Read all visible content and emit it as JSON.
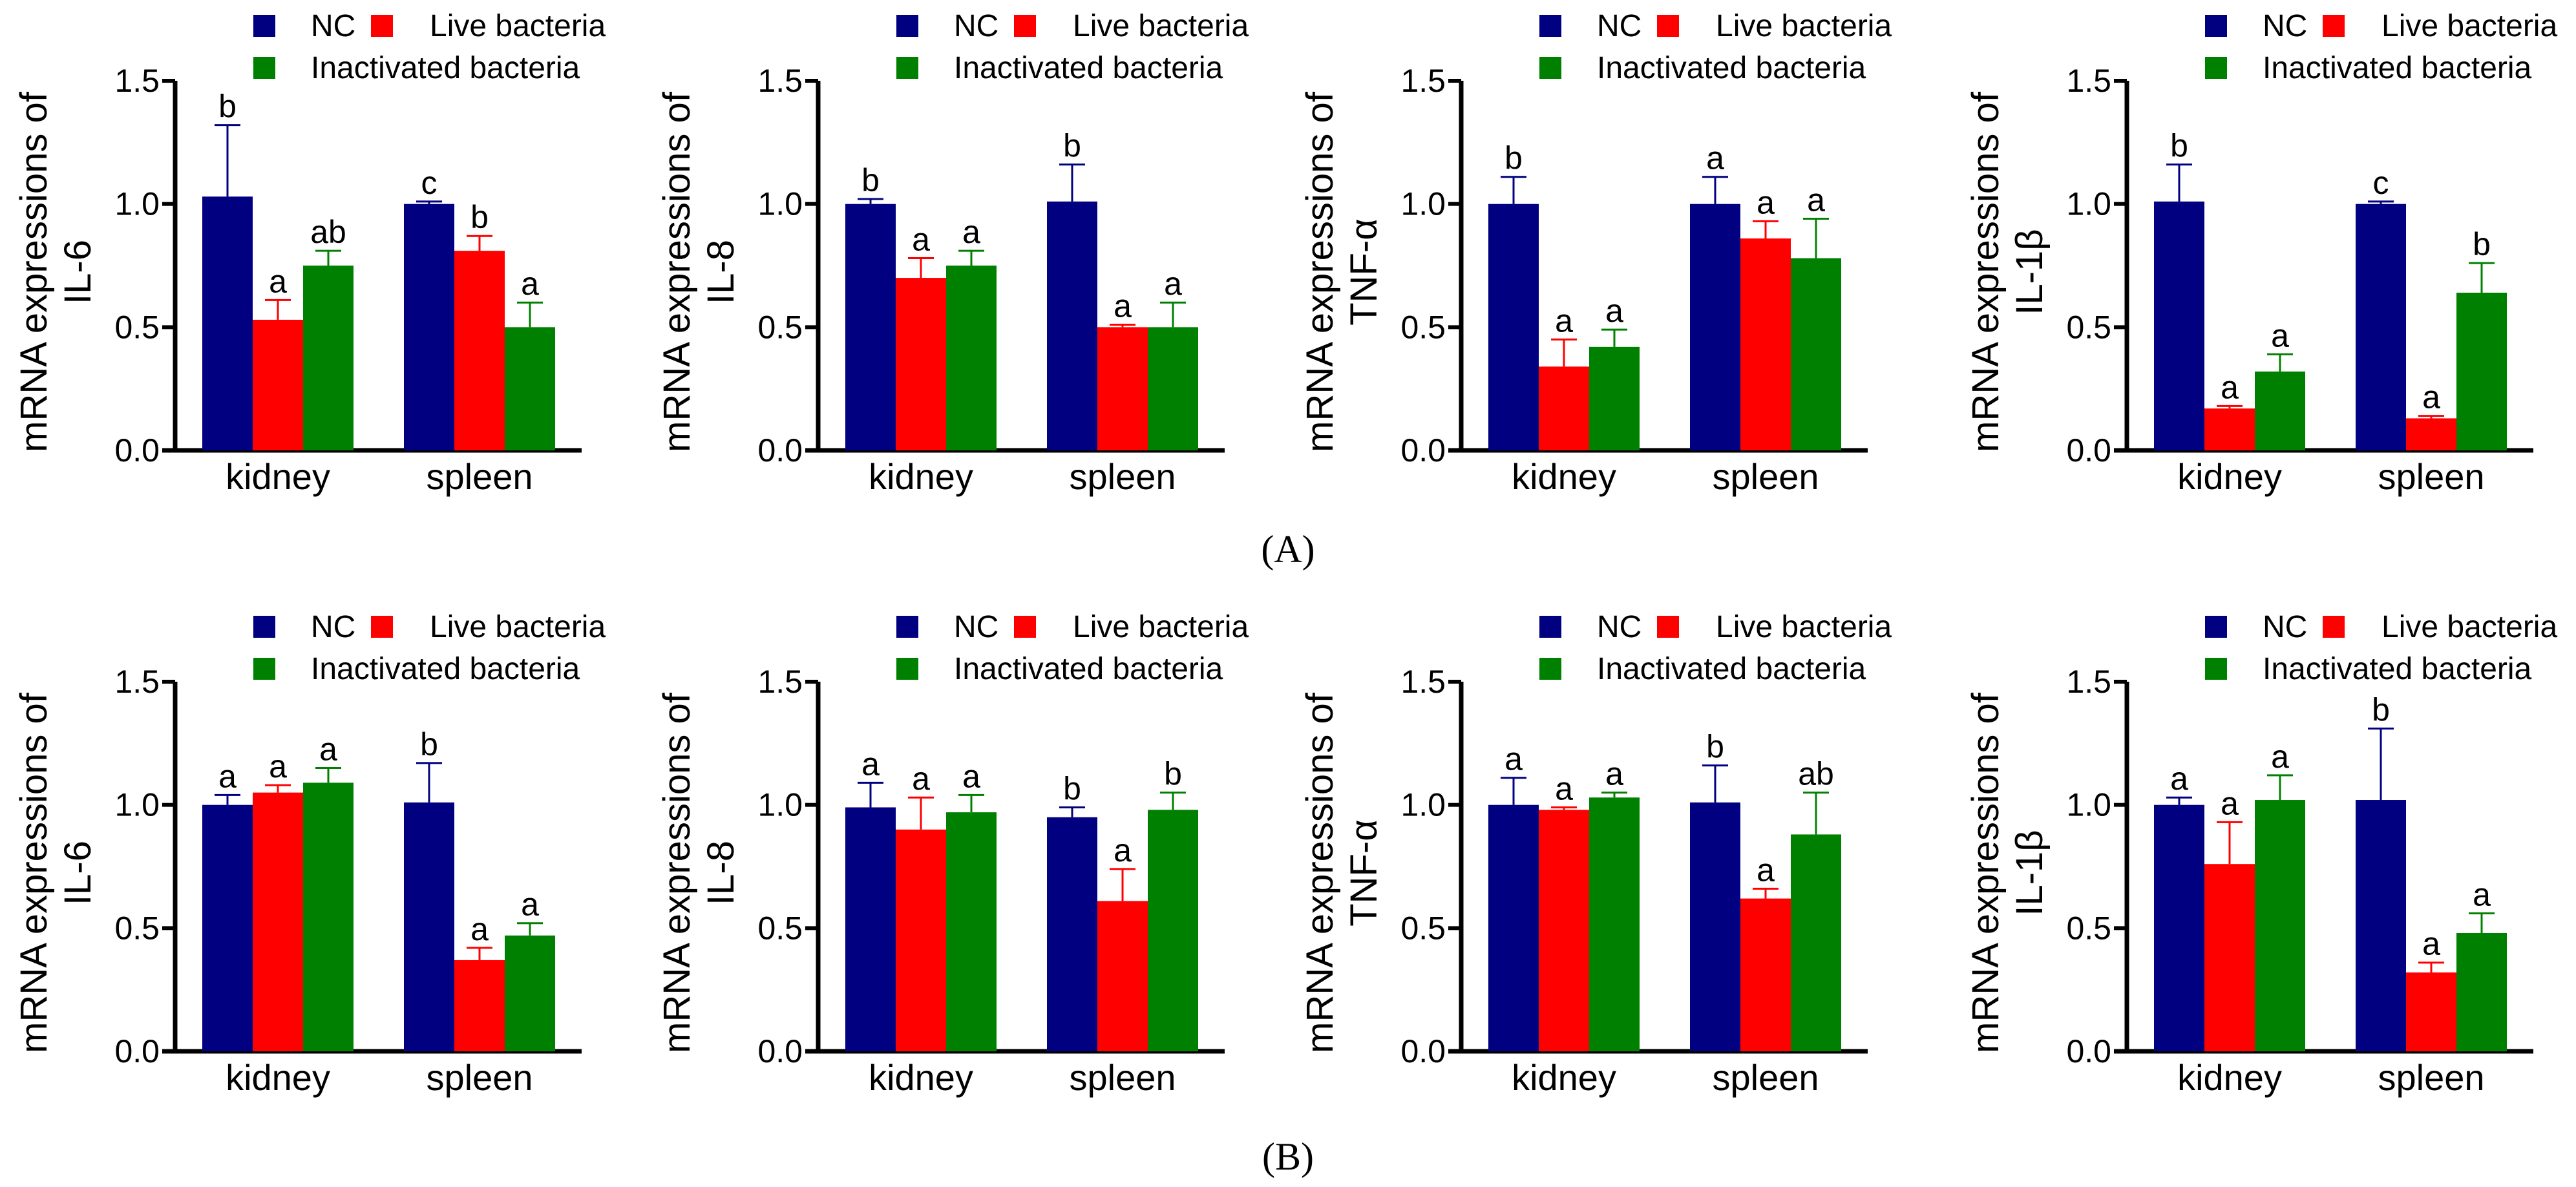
{
  "colors": {
    "NC": "#000080",
    "Live bacteria": "#ff0000",
    "Inactivated bacteria": "#008000"
  },
  "legend": [
    "NC",
    "Live bacteria",
    "Inactivated bacteria"
  ],
  "panel_labels": [
    "(A)",
    "(B)"
  ],
  "chart_data": [
    {
      "type": "bar",
      "row": "A",
      "ylabel": [
        "mRNA expressions of",
        "IL-6"
      ],
      "ylim": [
        0,
        1.5
      ],
      "yticks": [
        "0.0",
        "0.5",
        "1.0",
        "1.5"
      ],
      "categories": [
        "kidney",
        "spleen"
      ],
      "series": [
        {
          "name": "NC",
          "values": [
            1.03,
            1.0
          ],
          "errors": [
            0.29,
            0.01
          ],
          "letters": [
            "b",
            "c"
          ]
        },
        {
          "name": "Live bacteria",
          "values": [
            0.53,
            0.81
          ],
          "errors": [
            0.08,
            0.06
          ],
          "letters": [
            "a",
            "b"
          ]
        },
        {
          "name": "Inactivated bacteria",
          "values": [
            0.75,
            0.5
          ],
          "errors": [
            0.06,
            0.1
          ],
          "letters": [
            "ab",
            "a"
          ]
        }
      ]
    },
    {
      "type": "bar",
      "row": "A",
      "ylabel": [
        "mRNA expressions of",
        "IL-8"
      ],
      "ylim": [
        0,
        1.5
      ],
      "yticks": [
        "0.0",
        "0.5",
        "1.0",
        "1.5"
      ],
      "categories": [
        "kidney",
        "spleen"
      ],
      "series": [
        {
          "name": "NC",
          "values": [
            1.0,
            1.01
          ],
          "errors": [
            0.02,
            0.15
          ],
          "letters": [
            "b",
            "b"
          ]
        },
        {
          "name": "Live bacteria",
          "values": [
            0.7,
            0.5
          ],
          "errors": [
            0.08,
            0.01
          ],
          "letters": [
            "a",
            "a"
          ]
        },
        {
          "name": "Inactivated bacteria",
          "values": [
            0.75,
            0.5
          ],
          "errors": [
            0.06,
            0.1
          ],
          "letters": [
            "a",
            "a"
          ]
        }
      ]
    },
    {
      "type": "bar",
      "row": "A",
      "ylabel": [
        "mRNA expressions of",
        "TNF-α"
      ],
      "ylim": [
        0,
        1.5
      ],
      "yticks": [
        "0.0",
        "0.5",
        "1.0",
        "1.5"
      ],
      "categories": [
        "kidney",
        "spleen"
      ],
      "series": [
        {
          "name": "NC",
          "values": [
            1.0,
            1.0
          ],
          "errors": [
            0.11,
            0.11
          ],
          "letters": [
            "b",
            "a"
          ]
        },
        {
          "name": "Live bacteria",
          "values": [
            0.34,
            0.86
          ],
          "errors": [
            0.11,
            0.07
          ],
          "letters": [
            "a",
            "a"
          ]
        },
        {
          "name": "Inactivated bacteria",
          "values": [
            0.42,
            0.78
          ],
          "errors": [
            0.07,
            0.16
          ],
          "letters": [
            "a",
            "a"
          ]
        }
      ]
    },
    {
      "type": "bar",
      "row": "A",
      "ylabel": [
        "mRNA expressions of",
        "IL-1β"
      ],
      "ylim": [
        0,
        1.5
      ],
      "yticks": [
        "0.0",
        "0.5",
        "1.0",
        "1.5"
      ],
      "categories": [
        "kidney",
        "spleen"
      ],
      "series": [
        {
          "name": "NC",
          "values": [
            1.01,
            1.0
          ],
          "errors": [
            0.15,
            0.01
          ],
          "letters": [
            "b",
            "c"
          ]
        },
        {
          "name": "Live bacteria",
          "values": [
            0.17,
            0.13
          ],
          "errors": [
            0.01,
            0.01
          ],
          "letters": [
            "a",
            "a"
          ]
        },
        {
          "name": "Inactivated bacteria",
          "values": [
            0.32,
            0.64
          ],
          "errors": [
            0.07,
            0.12
          ],
          "letters": [
            "a",
            "b"
          ]
        }
      ]
    },
    {
      "type": "bar",
      "row": "B",
      "ylabel": [
        "mRNA expressions of",
        "IL-6"
      ],
      "ylim": [
        0,
        1.5
      ],
      "yticks": [
        "0.0",
        "0.5",
        "1.0",
        "1.5"
      ],
      "categories": [
        "kidney",
        "spleen"
      ],
      "series": [
        {
          "name": "NC",
          "values": [
            1.0,
            1.01
          ],
          "errors": [
            0.04,
            0.16
          ],
          "letters": [
            "a",
            "b"
          ]
        },
        {
          "name": "Live bacteria",
          "values": [
            1.05,
            0.37
          ],
          "errors": [
            0.03,
            0.05
          ],
          "letters": [
            "a",
            "a"
          ]
        },
        {
          "name": "Inactivated bacteria",
          "values": [
            1.09,
            0.47
          ],
          "errors": [
            0.06,
            0.05
          ],
          "letters": [
            "a",
            "a"
          ]
        }
      ]
    },
    {
      "type": "bar",
      "row": "B",
      "ylabel": [
        "mRNA expressions of",
        "IL-8"
      ],
      "ylim": [
        0,
        1.5
      ],
      "yticks": [
        "0.0",
        "0.5",
        "1.0",
        "1.5"
      ],
      "categories": [
        "kidney",
        "spleen"
      ],
      "series": [
        {
          "name": "NC",
          "values": [
            0.99,
            0.95
          ],
          "errors": [
            0.1,
            0.04
          ],
          "letters": [
            "a",
            "b"
          ]
        },
        {
          "name": "Live bacteria",
          "values": [
            0.9,
            0.61
          ],
          "errors": [
            0.13,
            0.13
          ],
          "letters": [
            "a",
            "a"
          ]
        },
        {
          "name": "Inactivated bacteria",
          "values": [
            0.97,
            0.98
          ],
          "errors": [
            0.07,
            0.07
          ],
          "letters": [
            "a",
            "b"
          ]
        }
      ]
    },
    {
      "type": "bar",
      "row": "B",
      "ylabel": [
        "mRNA expressions of",
        "TNF-α"
      ],
      "ylim": [
        0,
        1.5
      ],
      "yticks": [
        "0.0",
        "0.5",
        "1.0",
        "1.5"
      ],
      "categories": [
        "kidney",
        "spleen"
      ],
      "series": [
        {
          "name": "NC",
          "values": [
            1.0,
            1.01
          ],
          "errors": [
            0.11,
            0.15
          ],
          "letters": [
            "a",
            "b"
          ]
        },
        {
          "name": "Live bacteria",
          "values": [
            0.98,
            0.62
          ],
          "errors": [
            0.01,
            0.04
          ],
          "letters": [
            "a",
            "a"
          ]
        },
        {
          "name": "Inactivated bacteria",
          "values": [
            1.03,
            0.88
          ],
          "errors": [
            0.02,
            0.17
          ],
          "letters": [
            "a",
            "ab"
          ]
        }
      ]
    },
    {
      "type": "bar",
      "row": "B",
      "ylabel": [
        "mRNA expressions of",
        "IL-1β"
      ],
      "ylim": [
        0,
        1.5
      ],
      "yticks": [
        "0.0",
        "0.5",
        "1.0",
        "1.5"
      ],
      "categories": [
        "kidney",
        "spleen"
      ],
      "series": [
        {
          "name": "NC",
          "values": [
            1.0,
            1.02
          ],
          "errors": [
            0.03,
            0.29
          ],
          "letters": [
            "a",
            "b"
          ]
        },
        {
          "name": "Live bacteria",
          "values": [
            0.76,
            0.32
          ],
          "errors": [
            0.17,
            0.04
          ],
          "letters": [
            "a",
            "a"
          ]
        },
        {
          "name": "Inactivated bacteria",
          "values": [
            1.02,
            0.48
          ],
          "errors": [
            0.1,
            0.08
          ],
          "letters": [
            "a",
            "a"
          ]
        }
      ]
    }
  ]
}
